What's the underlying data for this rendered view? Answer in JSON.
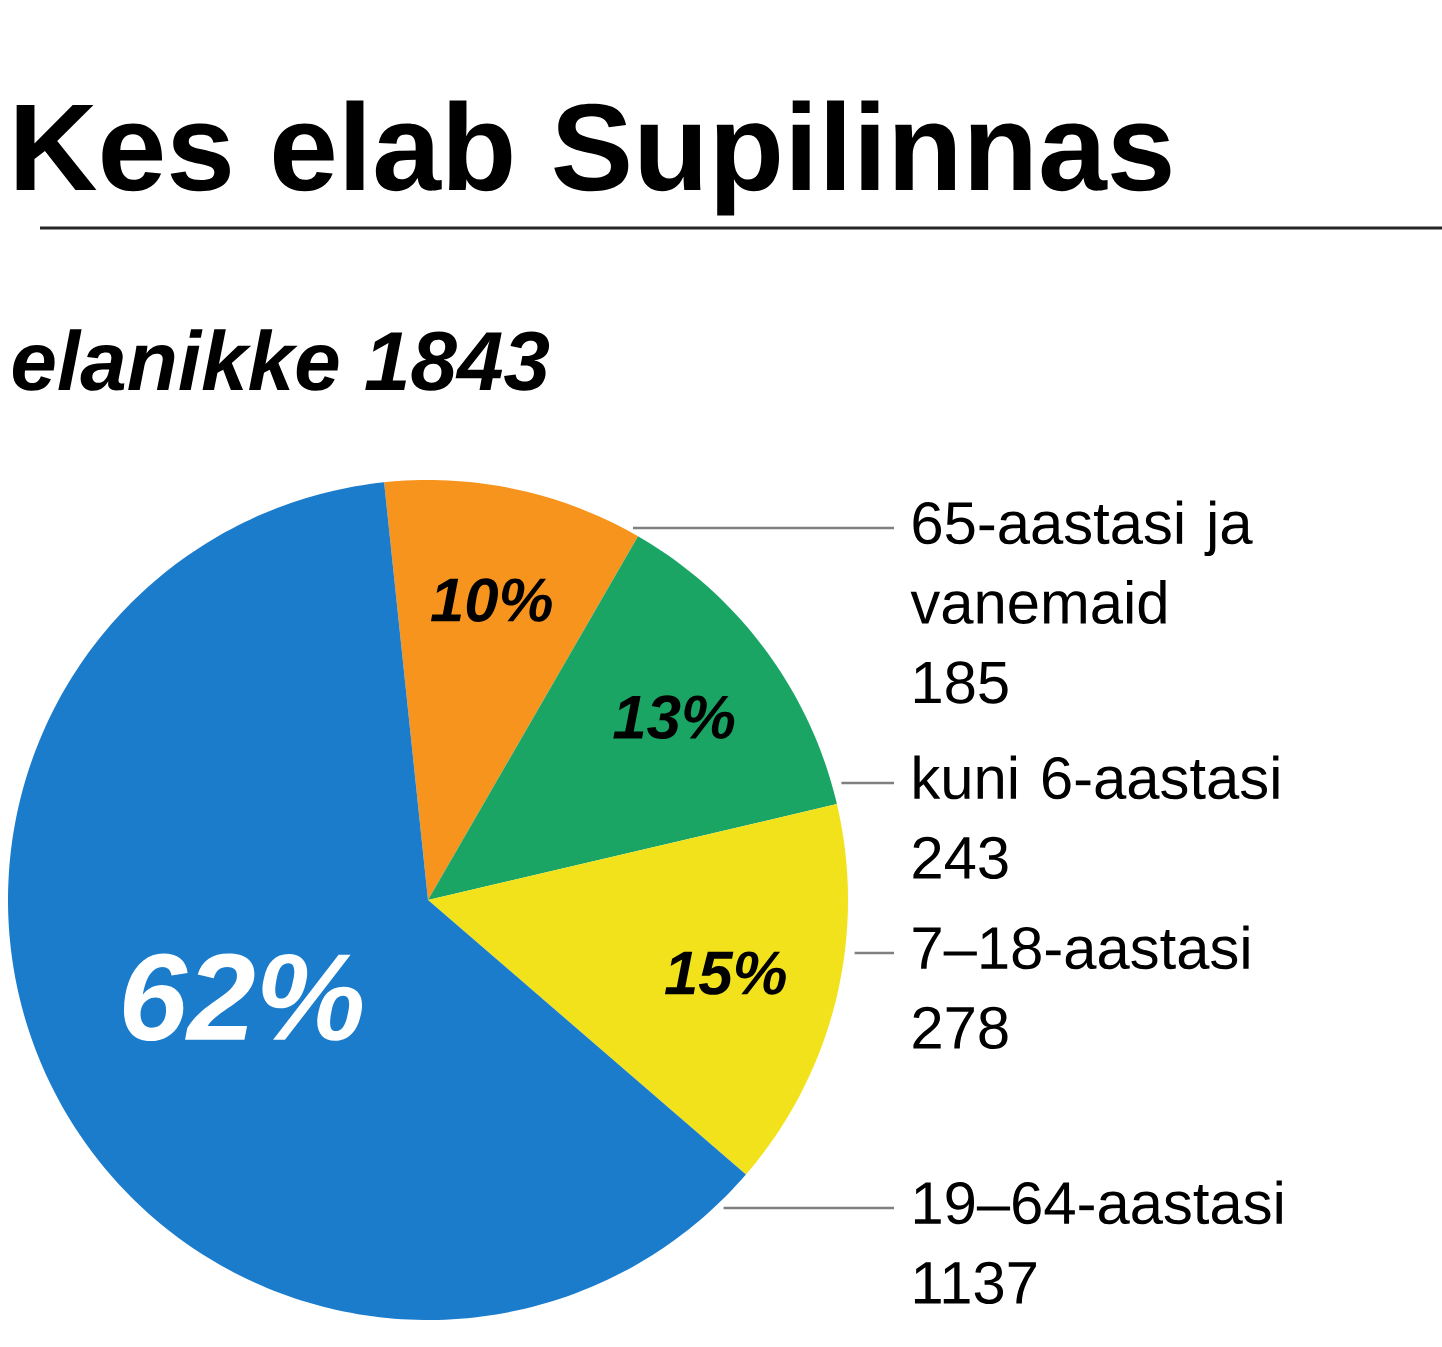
{
  "chart_data": {
    "type": "pie",
    "title": "Kes elab Supilinnas",
    "subtitle": "elanikke 1843",
    "categories": [
      "65-aastasi ja vanemaid",
      "kuni 6-aastasi",
      "7–18-aastasi",
      "19–64-aastasi"
    ],
    "values": [
      10,
      13,
      15,
      62
    ],
    "annotations": [
      "185",
      "243",
      "278",
      "1137"
    ],
    "colors": [
      "#f7941d",
      "#1aa564",
      "#f2e21c",
      "#1b7ccc"
    ],
    "value_labels": [
      "10%",
      "13%",
      "15%",
      "62%"
    ]
  }
}
